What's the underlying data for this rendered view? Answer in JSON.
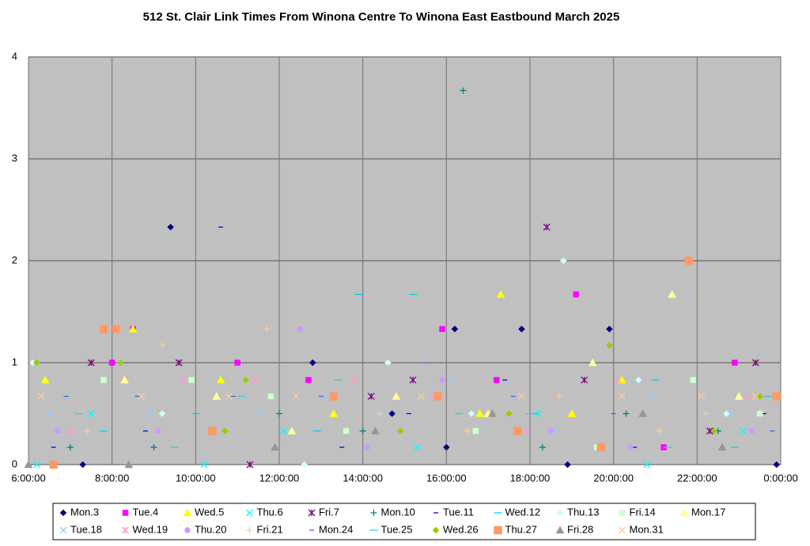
{
  "chart_data": {
    "type": "scatter",
    "title": "512 St. Clair Link Times From Winona Centre To Winona East Eastbound March 2025",
    "xlim": [
      6,
      24
    ],
    "xticks": [
      {
        "value": 6,
        "label": "6:00:00"
      },
      {
        "value": 8,
        "label": "8:00:00"
      },
      {
        "value": 10,
        "label": "10:00:00"
      },
      {
        "value": 12,
        "label": "12:00:00"
      },
      {
        "value": 14,
        "label": "14:00:00"
      },
      {
        "value": 16,
        "label": "16:00:00"
      },
      {
        "value": 18,
        "label": "18:00:00"
      },
      {
        "value": 20,
        "label": "20:00:00"
      },
      {
        "value": 22,
        "label": "22:00:00"
      },
      {
        "value": 24,
        "label": "0:00:00"
      }
    ],
    "ylim": [
      0,
      4
    ],
    "yticks": [
      0,
      1,
      2,
      3,
      4
    ],
    "grid": true,
    "series": [
      {
        "name": "Mon.3",
        "color": "#000080",
        "marker": "diamond",
        "x": [
          7.3,
          9.4,
          12.8,
          14.7,
          16.0,
          16.2,
          17.8,
          18.9,
          19.9,
          23.9
        ],
        "values": [
          0,
          2.33,
          1,
          0.5,
          0.17,
          1.33,
          1.33,
          0,
          1.33,
          0
        ]
      },
      {
        "name": "Tue.4",
        "color": "#ff00ff",
        "marker": "square",
        "x": [
          8.0,
          8.5,
          11.0,
          12.7,
          15.9,
          17.2,
          19.1,
          21.2,
          22.9
        ],
        "values": [
          1,
          1.33,
          1,
          0.83,
          1.33,
          0.83,
          1.67,
          0.17,
          1
        ]
      },
      {
        "name": "Wed.5",
        "color": "#ffff00",
        "marker": "triangle",
        "x": [
          6.4,
          8.5,
          10.6,
          13.3,
          16.8,
          17.3,
          19.0,
          20.2
        ],
        "values": [
          0.83,
          1.33,
          0.83,
          0.5,
          0.5,
          1.67,
          0.5,
          0.83
        ]
      },
      {
        "name": "Thu.6",
        "color": "#00ffff",
        "marker": "x",
        "x": [
          6.2,
          7.5,
          10.2,
          12.1,
          15.3,
          18.2,
          20.8,
          23.1
        ],
        "values": [
          0,
          0.5,
          0,
          0.33,
          0.17,
          0.5,
          0,
          0.33
        ]
      },
      {
        "name": "Fri.7",
        "color": "#800080",
        "marker": "star",
        "x": [
          7.5,
          9.6,
          11.3,
          14.2,
          15.2,
          18.4,
          19.3,
          22.3,
          23.4
        ],
        "values": [
          1,
          1,
          0,
          0.67,
          0.83,
          2.33,
          0.83,
          0.33,
          1
        ]
      },
      {
        "name": "Mon.10",
        "color": "#008080",
        "marker": "plus",
        "x": [
          7.0,
          9.0,
          12.0,
          14.0,
          16.4,
          18.3,
          20.3,
          22.5
        ],
        "values": [
          0.17,
          0.17,
          0.5,
          0.33,
          3.67,
          0.17,
          0.5,
          0.33
        ]
      },
      {
        "name": "Tue.11",
        "color": "#0000ff",
        "marker": "dash",
        "x": [
          6.6,
          8.8,
          10.6,
          13.5,
          15.1,
          17.4,
          20.5,
          23.6
        ],
        "values": [
          0.17,
          0.33,
          2.33,
          0.17,
          0.5,
          0.83,
          0.17,
          0.5
        ]
      },
      {
        "name": "Wed.12",
        "color": "#00ccff",
        "marker": "longdash",
        "x": [
          7.8,
          10.0,
          12.9,
          13.9,
          15.2,
          18.1,
          21.0,
          22.9
        ],
        "values": [
          0.33,
          0.5,
          0.33,
          1.67,
          1.67,
          0.5,
          0.83,
          0.17
        ]
      },
      {
        "name": "Thu.13",
        "color": "#ccffff",
        "marker": "diamond",
        "x": [
          6.1,
          9.2,
          12.6,
          14.6,
          16.6,
          18.8,
          20.6,
          22.7
        ],
        "values": [
          1,
          0.5,
          0,
          1,
          0.5,
          2,
          0.83,
          0.5
        ]
      },
      {
        "name": "Fri.14",
        "color": "#ccffcc",
        "marker": "square",
        "x": [
          7.8,
          9.9,
          11.8,
          13.6,
          16.7,
          19.6,
          21.9,
          23.5
        ],
        "values": [
          0.83,
          0.83,
          0.67,
          0.33,
          0.33,
          0.17,
          0.83,
          0.5
        ]
      },
      {
        "name": "Mon.17",
        "color": "#ffff99",
        "marker": "triangle",
        "x": [
          8.3,
          10.5,
          12.3,
          14.8,
          17.0,
          19.5,
          21.4,
          23.0
        ],
        "values": [
          0.83,
          0.67,
          0.33,
          0.67,
          0.5,
          1,
          1.67,
          0.67
        ]
      },
      {
        "name": "Tue.18",
        "color": "#99ccff",
        "marker": "x",
        "x": [
          6.5,
          8.9,
          11.5,
          13.2,
          16.1,
          18.6,
          20.9,
          22.8
        ],
        "values": [
          0.5,
          0.5,
          0.5,
          0.67,
          0.83,
          0.33,
          0.67,
          0.5
        ]
      },
      {
        "name": "Wed.19",
        "color": "#ff99cc",
        "marker": "star",
        "x": [
          7.0,
          9.7,
          11.4,
          13.8,
          15.7,
          17.9,
          20.1,
          23.2
        ],
        "values": [
          0.33,
          0.83,
          0.83,
          0.83,
          0.67,
          0.33,
          0.83,
          0.67
        ]
      },
      {
        "name": "Thu.20",
        "color": "#cc99ff",
        "marker": "circle",
        "x": [
          6.7,
          9.1,
          12.5,
          14.1,
          15.9,
          18.5,
          20.4,
          23.3
        ],
        "values": [
          0.33,
          0.33,
          1.33,
          0.17,
          0.83,
          0.33,
          0.17,
          0.33
        ]
      },
      {
        "name": "Fri.21",
        "color": "#ffcc99",
        "marker": "plus",
        "x": [
          7.4,
          9.2,
          11.7,
          14.4,
          16.5,
          18.7,
          21.1,
          22.2
        ],
        "values": [
          0.33,
          1.17,
          1.33,
          0.5,
          0.33,
          0.67,
          0.33,
          0.5
        ]
      },
      {
        "name": "Mon.24",
        "color": "#3366ff",
        "marker": "dash",
        "x": [
          6.9,
          8.6,
          10.9,
          13.0,
          15.5,
          17.6,
          20.0,
          23.8
        ],
        "values": [
          0.67,
          0.67,
          0.67,
          0.67,
          1,
          0.67,
          0.5,
          0.33
        ]
      },
      {
        "name": "Tue.25",
        "color": "#33cccc",
        "marker": "longdash",
        "x": [
          7.2,
          9.5,
          11.1,
          13.4,
          16.3,
          18.0,
          21.3,
          23.7
        ],
        "values": [
          0.5,
          0.17,
          0.67,
          0.83,
          0.5,
          0.5,
          0.17,
          0.67
        ]
      },
      {
        "name": "Wed.26",
        "color": "#99cc00",
        "marker": "diamond",
        "x": [
          6.2,
          8.2,
          10.7,
          11.2,
          14.9,
          17.5,
          19.9,
          22.4,
          23.5
        ],
        "values": [
          1,
          1,
          0.33,
          0.83,
          0.33,
          0.5,
          1.17,
          0.33,
          0.67
        ]
      },
      {
        "name": "Thu.27",
        "color": "#ff9966",
        "marker": "bigsquare",
        "x": [
          6.6,
          7.8,
          8.1,
          10.4,
          13.3,
          15.8,
          17.7,
          19.7,
          21.8,
          23.9
        ],
        "values": [
          0,
          1.33,
          1.33,
          0.33,
          0.67,
          0.67,
          0.33,
          0.17,
          2,
          0.67
        ]
      },
      {
        "name": "Fri.28",
        "color": "#969696",
        "marker": "triangle",
        "x": [
          6.0,
          8.4,
          11.9,
          14.3,
          17.1,
          20.7,
          22.6
        ],
        "values": [
          0,
          0,
          0.17,
          0.33,
          0.5,
          0.5,
          0.17
        ]
      },
      {
        "name": "Mon.31",
        "color": "#ffcc99",
        "marker": "x",
        "x": [
          6.3,
          8.7,
          10.8,
          12.4,
          15.4,
          17.8,
          20.2,
          22.1,
          23.4
        ],
        "values": [
          0.67,
          0.67,
          0.67,
          0.67,
          0.67,
          0.67,
          0.67,
          0.67,
          0.67
        ]
      }
    ]
  }
}
